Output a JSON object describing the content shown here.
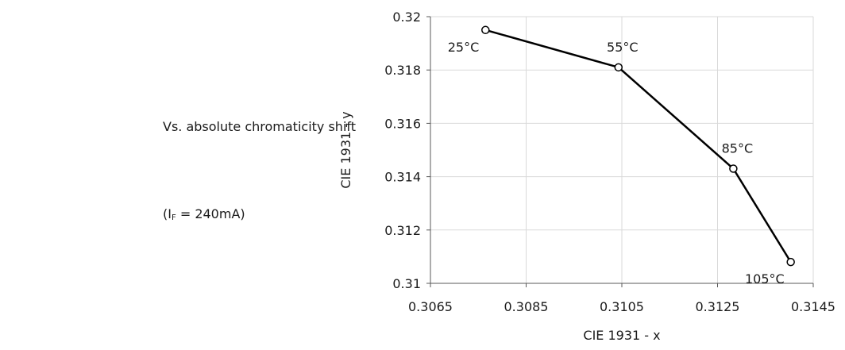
{
  "captions": {
    "title": "Vs. absolute chromaticity shift",
    "condition_prefix": "(I",
    "condition_sub": "F",
    "condition_suffix": " = 240mA)"
  },
  "chart_data": {
    "type": "line",
    "title": "",
    "xlabel": "CIE 1931 - x",
    "ylabel": "CIE 1931 - y",
    "xlim": [
      0.3065,
      0.3145
    ],
    "ylim": [
      0.31,
      0.32
    ],
    "x_ticks": [
      0.3065,
      0.3085,
      0.3105,
      0.3125,
      0.3145
    ],
    "x_tick_labels": [
      "0.3065",
      "0.3085",
      "0.3105",
      "0.3125",
      "0.3145"
    ],
    "y_ticks": [
      0.31,
      0.312,
      0.314,
      0.316,
      0.318,
      0.32
    ],
    "y_tick_labels": [
      "0.31",
      "0.312",
      "0.314",
      "0.316",
      "0.318",
      "0.32"
    ],
    "grid": true,
    "legend": "none",
    "line_color": "#000000",
    "grid_color": "#d9d9d9",
    "series": [
      {
        "x": [
          0.30765,
          0.31043,
          0.31283,
          0.31403
        ],
        "y": [
          0.3195,
          0.3181,
          0.3143,
          0.3108
        ],
        "point_labels": [
          "25°C",
          "55°C",
          "85°C",
          "105°C"
        ],
        "label_positions": [
          "below-left",
          "above",
          "above",
          "below-left"
        ]
      }
    ]
  }
}
